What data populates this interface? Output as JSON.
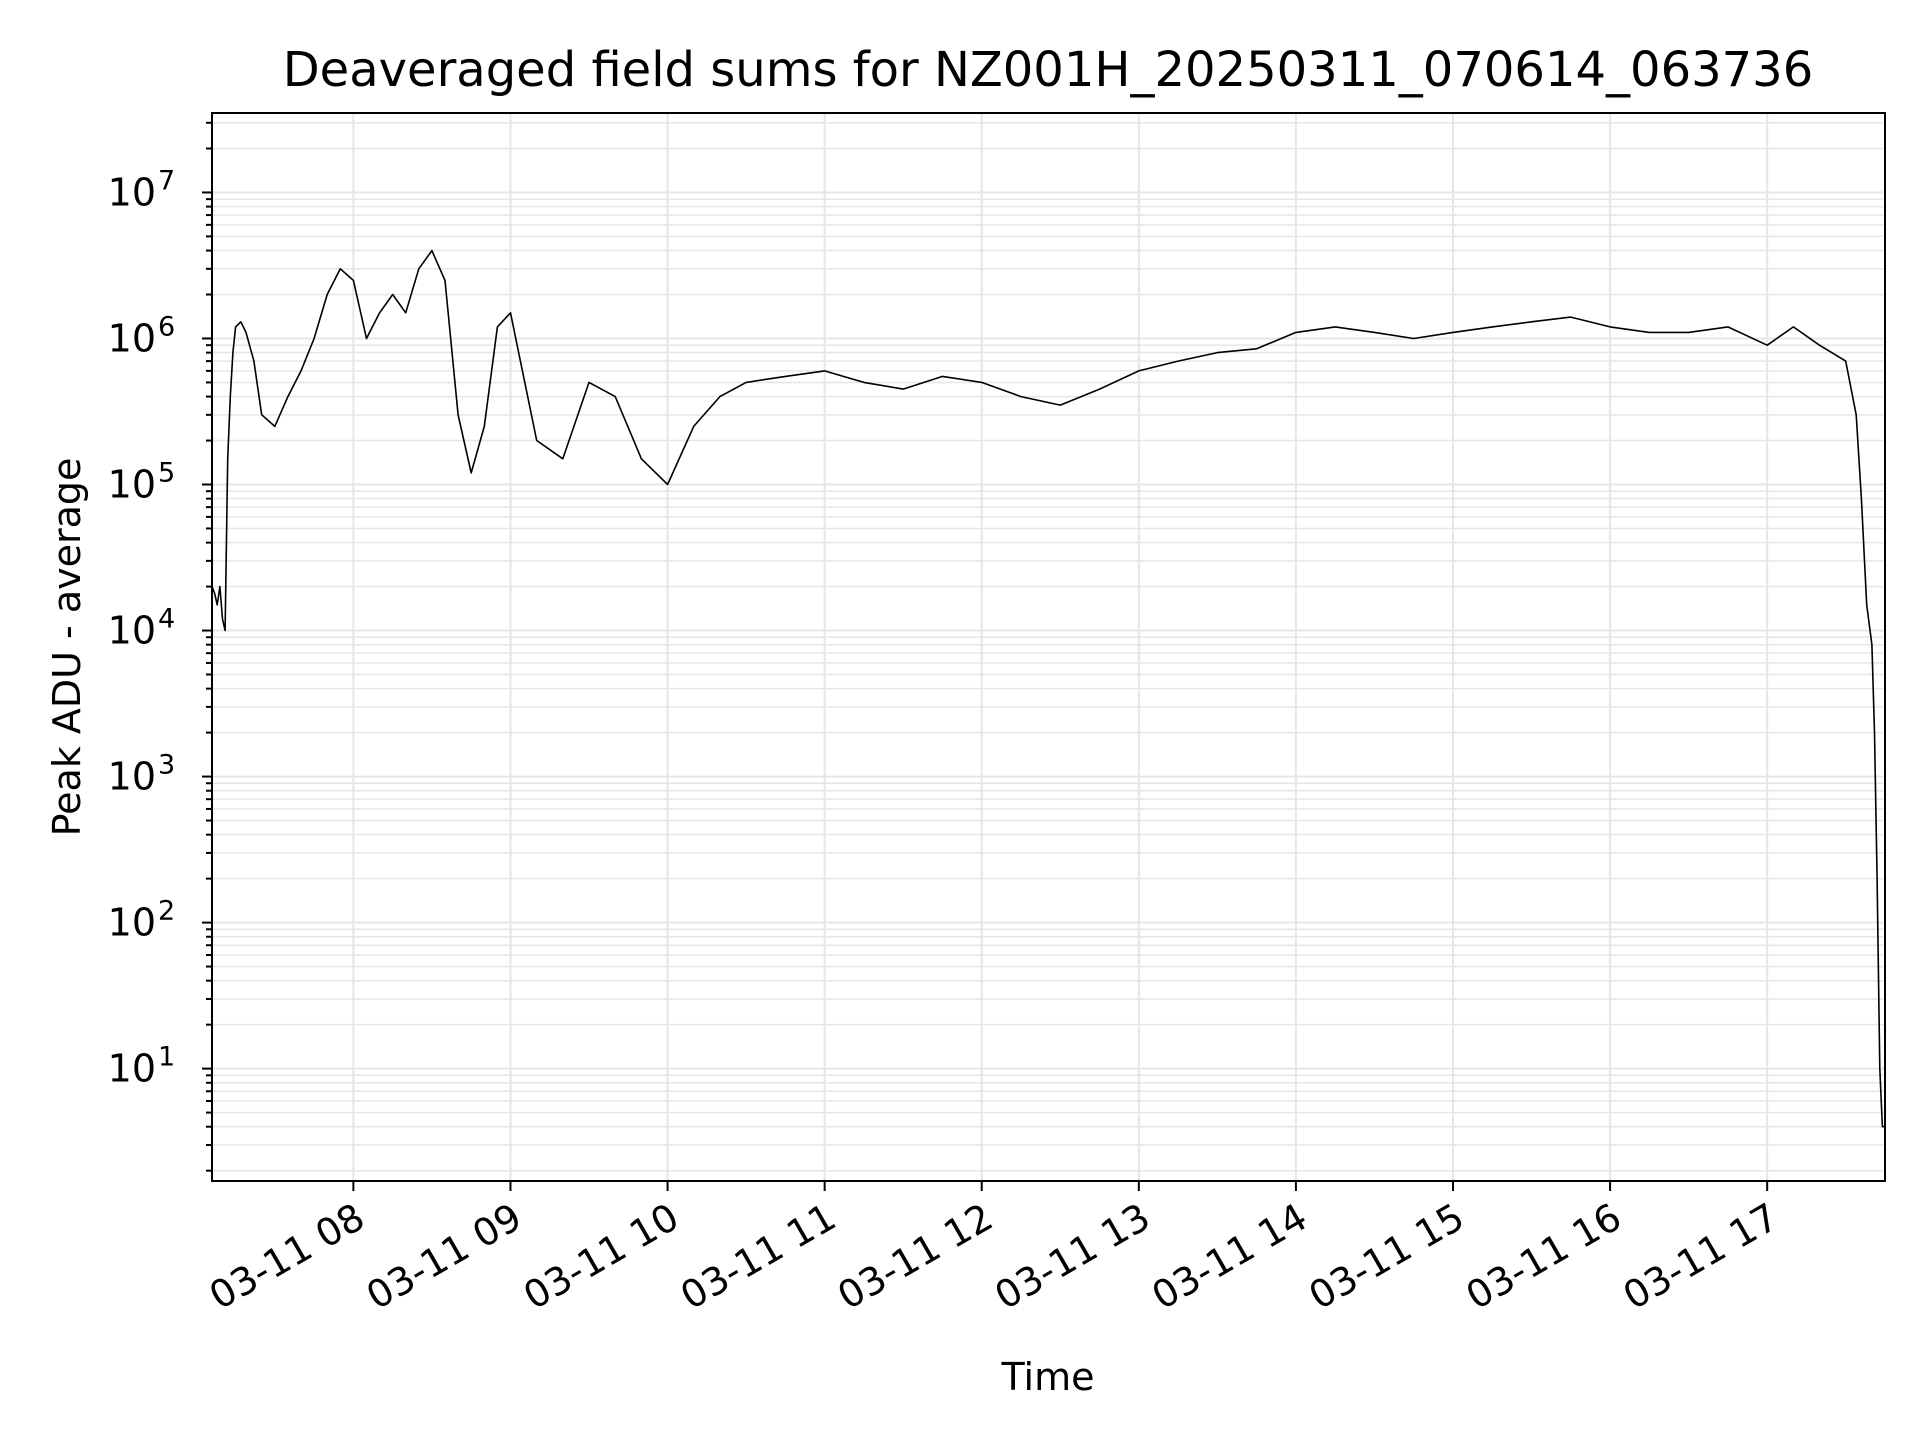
{
  "chart_data": {
    "type": "line",
    "title": "Deaveraged field sums for NZ001H_20250311_070614_063736",
    "xlabel": "Time",
    "ylabel": "Peak ADU - average",
    "yscale": "log",
    "ylim": [
      1.7,
      35000000
    ],
    "xlim": [
      "2025-03-11 07:06",
      "2025-03-11 17:45"
    ],
    "x_ticks": [
      {
        "label": "03-11 08",
        "value": "2025-03-11 08:00"
      },
      {
        "label": "03-11 09",
        "value": "2025-03-11 09:00"
      },
      {
        "label": "03-11 10",
        "value": "2025-03-11 10:00"
      },
      {
        "label": "03-11 11",
        "value": "2025-03-11 11:00"
      },
      {
        "label": "03-11 12",
        "value": "2025-03-11 12:00"
      },
      {
        "label": "03-11 13",
        "value": "2025-03-11 13:00"
      },
      {
        "label": "03-11 14",
        "value": "2025-03-11 14:00"
      },
      {
        "label": "03-11 15",
        "value": "2025-03-11 15:00"
      },
      {
        "label": "03-11 16",
        "value": "2025-03-11 16:00"
      },
      {
        "label": "03-11 17",
        "value": "2025-03-11 17:00"
      }
    ],
    "y_ticks": [
      {
        "base": "10",
        "exp": "1",
        "value": 10
      },
      {
        "base": "10",
        "exp": "2",
        "value": 100
      },
      {
        "base": "10",
        "exp": "3",
        "value": 1000
      },
      {
        "base": "10",
        "exp": "4",
        "value": 10000
      },
      {
        "base": "10",
        "exp": "5",
        "value": 100000
      },
      {
        "base": "10",
        "exp": "6",
        "value": 1000000
      },
      {
        "base": "10",
        "exp": "7",
        "value": 10000000
      }
    ],
    "grid": true,
    "line_color": "#000000",
    "grid_color": "#e6e6e6",
    "series": [
      {
        "x": [
          "2025-03-11 07:06",
          "2025-03-11 07:07",
          "2025-03-11 07:08",
          "2025-03-11 07:09",
          "2025-03-11 07:10",
          "2025-03-11 07:11",
          "2025-03-11 07:12",
          "2025-03-11 07:13",
          "2025-03-11 07:14",
          "2025-03-11 07:15",
          "2025-03-11 07:17",
          "2025-03-11 07:19",
          "2025-03-11 07:22",
          "2025-03-11 07:25",
          "2025-03-11 07:30",
          "2025-03-11 07:35",
          "2025-03-11 07:40",
          "2025-03-11 07:45",
          "2025-03-11 07:50",
          "2025-03-11 07:55",
          "2025-03-11 08:00",
          "2025-03-11 08:05",
          "2025-03-11 08:10",
          "2025-03-11 08:15",
          "2025-03-11 08:20",
          "2025-03-11 08:25",
          "2025-03-11 08:30",
          "2025-03-11 08:35",
          "2025-03-11 08:40",
          "2025-03-11 08:45",
          "2025-03-11 08:50",
          "2025-03-11 08:55",
          "2025-03-11 09:00",
          "2025-03-11 09:10",
          "2025-03-11 09:20",
          "2025-03-11 09:30",
          "2025-03-11 09:40",
          "2025-03-11 09:50",
          "2025-03-11 10:00",
          "2025-03-11 10:10",
          "2025-03-11 10:20",
          "2025-03-11 10:30",
          "2025-03-11 10:45",
          "2025-03-11 11:00",
          "2025-03-11 11:15",
          "2025-03-11 11:30",
          "2025-03-11 11:45",
          "2025-03-11 12:00",
          "2025-03-11 12:15",
          "2025-03-11 12:30",
          "2025-03-11 12:45",
          "2025-03-11 13:00",
          "2025-03-11 13:15",
          "2025-03-11 13:30",
          "2025-03-11 13:45",
          "2025-03-11 14:00",
          "2025-03-11 14:15",
          "2025-03-11 14:30",
          "2025-03-11 14:45",
          "2025-03-11 15:00",
          "2025-03-11 15:15",
          "2025-03-11 15:30",
          "2025-03-11 15:45",
          "2025-03-11 16:00",
          "2025-03-11 16:15",
          "2025-03-11 16:30",
          "2025-03-11 16:45",
          "2025-03-11 17:00",
          "2025-03-11 17:10",
          "2025-03-11 17:20",
          "2025-03-11 17:30",
          "2025-03-11 17:34",
          "2025-03-11 17:36",
          "2025-03-11 17:38",
          "2025-03-11 17:40",
          "2025-03-11 17:41",
          "2025-03-11 17:42",
          "2025-03-11 17:43",
          "2025-03-11 17:44",
          "2025-03-11 17:45"
        ],
        "y": [
          20000,
          18000,
          15000,
          20000,
          12000,
          10000,
          150000,
          400000,
          800000,
          1200000,
          1300000,
          1100000,
          700000,
          300000,
          250000,
          400000,
          600000,
          1000000,
          2000000,
          3000000,
          2500000,
          1000000,
          1500000,
          2000000,
          1500000,
          3000000,
          4000000,
          2500000,
          300000,
          120000,
          250000,
          1200000,
          1500000,
          200000,
          150000,
          500000,
          400000,
          150000,
          100000,
          250000,
          400000,
          500000,
          550000,
          600000,
          500000,
          450000,
          550000,
          500000,
          400000,
          350000,
          450000,
          600000,
          700000,
          800000,
          850000,
          1100000,
          1200000,
          1100000,
          1000000,
          1100000,
          1200000,
          1300000,
          1400000,
          1200000,
          1100000,
          1100000,
          1200000,
          900000,
          1200000,
          900000,
          700000,
          300000,
          80000,
          15000,
          8000,
          2000,
          200,
          10,
          4,
          4
        ]
      }
    ]
  }
}
